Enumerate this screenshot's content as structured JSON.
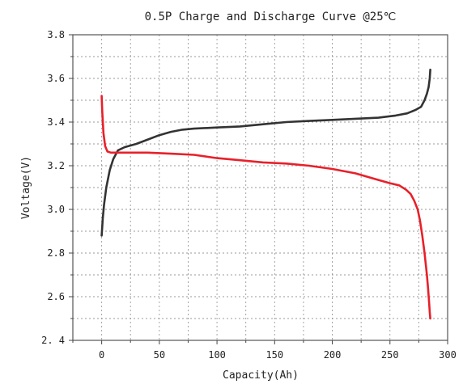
{
  "chart_data": {
    "type": "line",
    "title": "0.5P Charge and Discharge Curve @25℃",
    "xlabel": "Capacity(Ah)",
    "ylabel": "Voltage(V)",
    "xlim": [
      -25,
      300
    ],
    "ylim": [
      2.4,
      3.8
    ],
    "xticks": [
      "0",
      "50",
      "100",
      "150",
      "200",
      "250",
      "300"
    ],
    "yticks": [
      "2. 4",
      "2.6",
      "2.8",
      "3.0",
      "3.2",
      "3.4",
      "3.6",
      "3.8"
    ],
    "grid": true,
    "series": [
      {
        "color": "#333333",
        "x": [
          0,
          1,
          2,
          4,
          7,
          10,
          14,
          20,
          30,
          40,
          50,
          60,
          70,
          80,
          100,
          120,
          140,
          160,
          180,
          200,
          220,
          240,
          255,
          265,
          272,
          277,
          280,
          282,
          283.5,
          284.5,
          285
        ],
        "y": [
          2.88,
          2.96,
          3.02,
          3.1,
          3.18,
          3.23,
          3.27,
          3.285,
          3.3,
          3.32,
          3.34,
          3.355,
          3.365,
          3.37,
          3.375,
          3.38,
          3.39,
          3.4,
          3.405,
          3.41,
          3.415,
          3.42,
          3.43,
          3.44,
          3.455,
          3.47,
          3.5,
          3.53,
          3.56,
          3.6,
          3.64
        ]
      },
      {
        "color": "#e8202a",
        "x": [
          0,
          0.5,
          1.5,
          3,
          5,
          8,
          12,
          20,
          40,
          60,
          80,
          100,
          120,
          140,
          160,
          180,
          200,
          220,
          240,
          250,
          258,
          264,
          268,
          271,
          274,
          276,
          278,
          280,
          282,
          283,
          284,
          284.5,
          285
        ],
        "y": [
          3.52,
          3.45,
          3.35,
          3.29,
          3.265,
          3.26,
          3.26,
          3.26,
          3.26,
          3.255,
          3.25,
          3.235,
          3.225,
          3.215,
          3.21,
          3.2,
          3.185,
          3.165,
          3.135,
          3.12,
          3.11,
          3.09,
          3.07,
          3.04,
          3.0,
          2.95,
          2.88,
          2.8,
          2.7,
          2.64,
          2.57,
          2.53,
          2.5
        ]
      }
    ]
  }
}
